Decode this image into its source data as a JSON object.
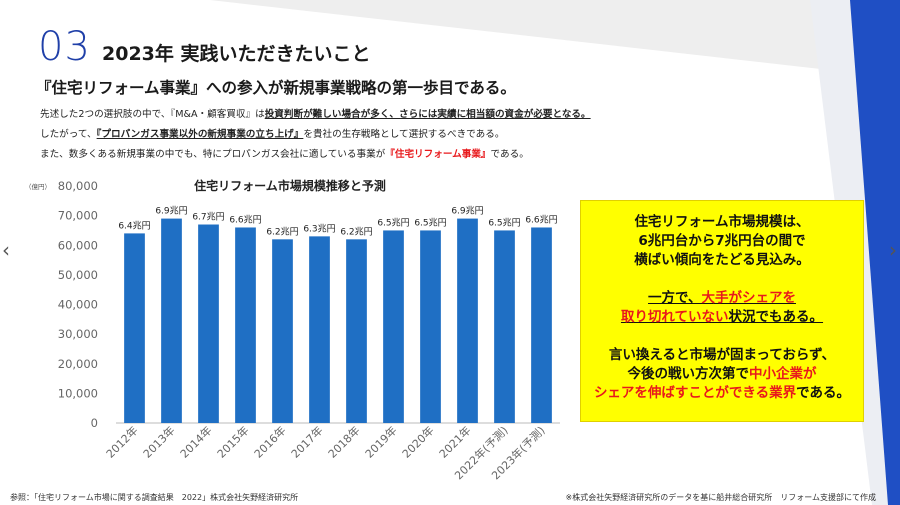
{
  "header": {
    "number": "03",
    "title": "2023年 実践いただきたいこと"
  },
  "lead": "『住宅リフォーム事業』への参入が新規事業戦略の第一歩目である。",
  "body": {
    "line1_a": "先述した2つの選択肢の中で、『M&A・顧客買収』は",
    "line1_b": "投資判断が難しい場合が多く、さらには実績に相当額の資金が必要となる。",
    "line2_a": "したがって、",
    "line2_b": "『プロパンガス事業以外の新規事業の立ち上げ』",
    "line2_c": "を貴社の生存戦略として選択するべきである。",
    "line3_a": "また、数多くある新規事業の中でも、特にプロパンガス会社に適している事業が",
    "line3_b": "『住宅リフォーム事業』",
    "line3_c": "である。"
  },
  "chart_data": {
    "type": "bar",
    "title": "住宅リフォーム市場規模推移と予測",
    "unit_label": "（億円）",
    "categories": [
      "2012年",
      "2013年",
      "2014年",
      "2015年",
      "2016年",
      "2017年",
      "2018年",
      "2019年",
      "2020年",
      "2021年",
      "2022年(予測)",
      "2023年(予測)"
    ],
    "values": [
      64000,
      69000,
      67000,
      66000,
      62000,
      63000,
      62000,
      65000,
      65000,
      69000,
      65000,
      66000
    ],
    "data_labels": [
      "6.4兆円",
      "6.9兆円",
      "6.7兆円",
      "6.6兆円",
      "6.2兆円",
      "6.3兆円",
      "6.2兆円",
      "6.5兆円",
      "6.5兆円",
      "6.9兆円",
      "6.5兆円",
      "6.6兆円"
    ],
    "ylim": [
      0,
      80000
    ],
    "yticks": [
      "0",
      "10,000",
      "20,000",
      "30,000",
      "40,000",
      "50,000",
      "60,000",
      "70,000",
      "80,000"
    ],
    "bar_color": "#1f6fc4",
    "grid": false
  },
  "callout": {
    "p1_l1": "住宅リフォーム市場規模は、",
    "p1_l2": "6兆円台から7兆円台の間で",
    "p1_l3": "横ばい傾向をたどる見込み。",
    "p2_l1_a": "一方で、",
    "p2_l1_b": "大手がシェアを",
    "p2_l2_a": "取り切れていない",
    "p2_l2_b": "状況でもある。",
    "p3_l1": "言い換えると市場が固まっておらず、",
    "p3_l2_a": "今後の戦い方次第で",
    "p3_l2_b": "中小企業が",
    "p3_l3_a": "シェアを伸ばすことができる業界",
    "p3_l3_b": "である。"
  },
  "footer": {
    "left": "参照：「住宅リフォーム市場に関する調査結果　2022」株式会社矢野経済研究所",
    "right": "※株式会社矢野経済研究所のデータを基に船井総合研究所　リフォーム支援部にて作成"
  },
  "nav": {
    "prev": "‹",
    "next": "›"
  },
  "colors": {
    "accent_blue": "#1f3fa8",
    "red": "#e8191c",
    "callout_bg": "#ffff00"
  }
}
